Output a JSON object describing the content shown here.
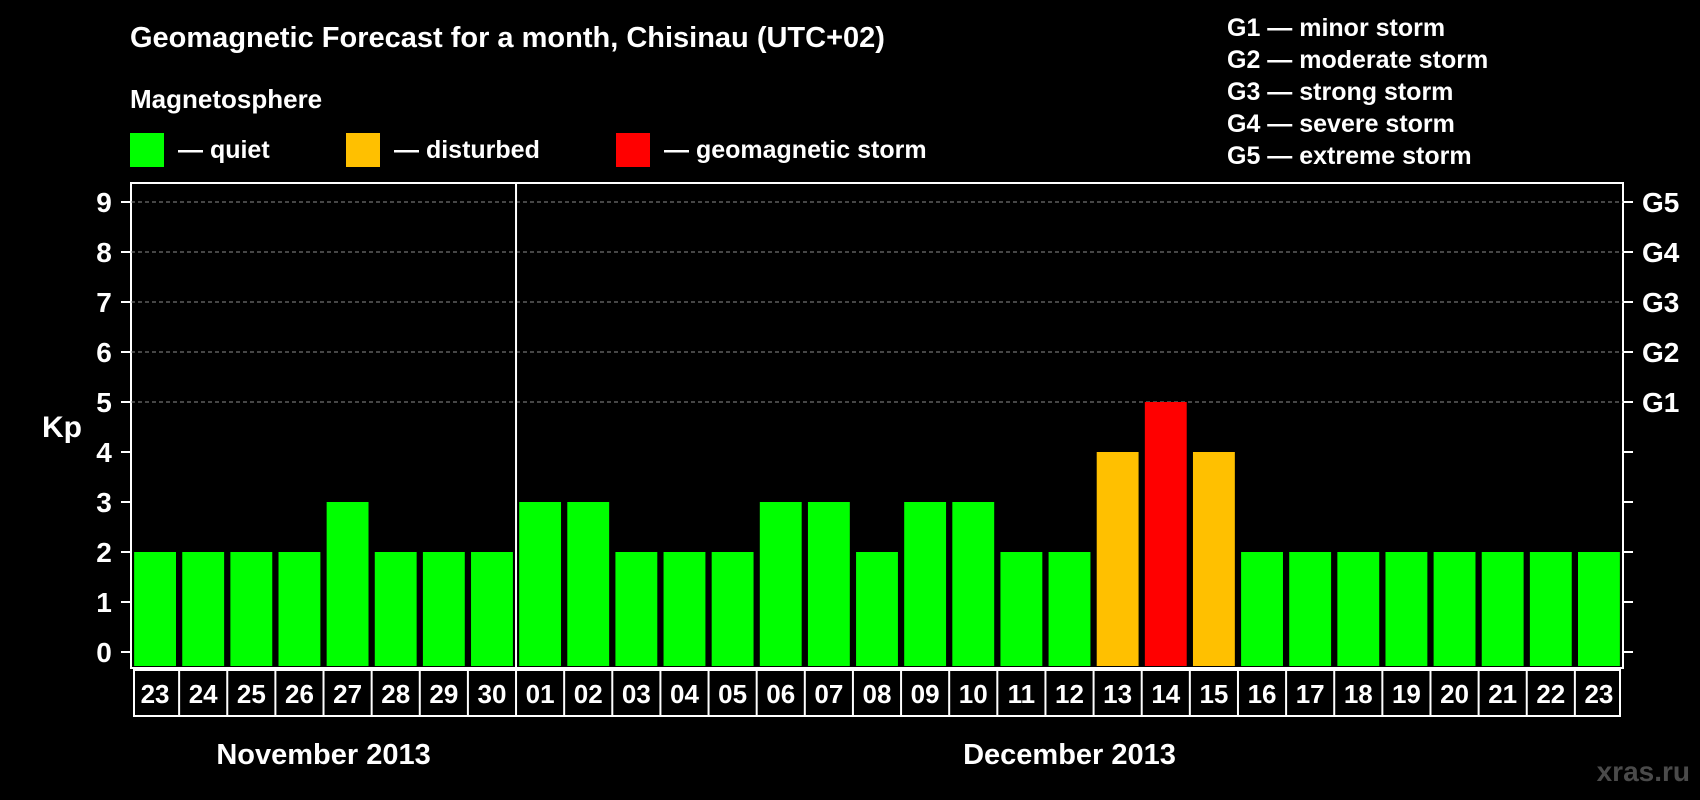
{
  "title": "Geomagnetic Forecast for a month, Chisinau (UTC+02)",
  "subtitle": "Magnetosphere",
  "legend": [
    {
      "label": "— quiet",
      "color": "#00ff00"
    },
    {
      "label": "— disturbed",
      "color": "#ffc000"
    },
    {
      "label": "— geomagnetic storm",
      "color": "#ff0000"
    }
  ],
  "g_levels": [
    "G1 — minor storm",
    "G2 — moderate storm",
    "G3 — strong storm",
    "G4 — severe storm",
    "G5 — extreme storm"
  ],
  "watermark": "xras.ru",
  "chart_data": {
    "type": "bar",
    "title": "Geomagnetic Forecast for a month, Chisinau (UTC+02)",
    "ylabel": "Kp",
    "ylim": [
      0,
      9
    ],
    "y_ticks": [
      "0",
      "1",
      "2",
      "3",
      "4",
      "5",
      "6",
      "7",
      "8",
      "9"
    ],
    "right_ticks": [
      {
        "value": 5,
        "label": "G1"
      },
      {
        "value": 6,
        "label": "G2"
      },
      {
        "value": 7,
        "label": "G3"
      },
      {
        "value": 8,
        "label": "G4"
      },
      {
        "value": 9,
        "label": "G5"
      }
    ],
    "grid_lines_at": [
      5,
      6,
      7,
      8,
      9
    ],
    "categories": [
      "23",
      "24",
      "25",
      "26",
      "27",
      "28",
      "29",
      "30",
      "01",
      "02",
      "03",
      "04",
      "05",
      "06",
      "07",
      "08",
      "09",
      "10",
      "11",
      "12",
      "13",
      "14",
      "15",
      "16",
      "17",
      "18",
      "19",
      "20",
      "21",
      "22",
      "23"
    ],
    "values": [
      2,
      2,
      2,
      2,
      3,
      2,
      2,
      2,
      3,
      3,
      2,
      2,
      2,
      3,
      3,
      2,
      3,
      3,
      2,
      2,
      4,
      5,
      4,
      2,
      2,
      2,
      2,
      2,
      2,
      2,
      2
    ],
    "status": [
      "quiet",
      "quiet",
      "quiet",
      "quiet",
      "quiet",
      "quiet",
      "quiet",
      "quiet",
      "quiet",
      "quiet",
      "quiet",
      "quiet",
      "quiet",
      "quiet",
      "quiet",
      "quiet",
      "quiet",
      "quiet",
      "quiet",
      "quiet",
      "disturbed",
      "storm",
      "disturbed",
      "quiet",
      "quiet",
      "quiet",
      "quiet",
      "quiet",
      "quiet",
      "quiet",
      "quiet"
    ],
    "status_colors": {
      "quiet": "#00ff00",
      "disturbed": "#ffc000",
      "storm": "#ff0000"
    },
    "month_groups": [
      {
        "label": "November 2013",
        "start_index": 0,
        "count": 8
      },
      {
        "label": "December 2013",
        "start_index": 8,
        "count": 23
      }
    ]
  }
}
